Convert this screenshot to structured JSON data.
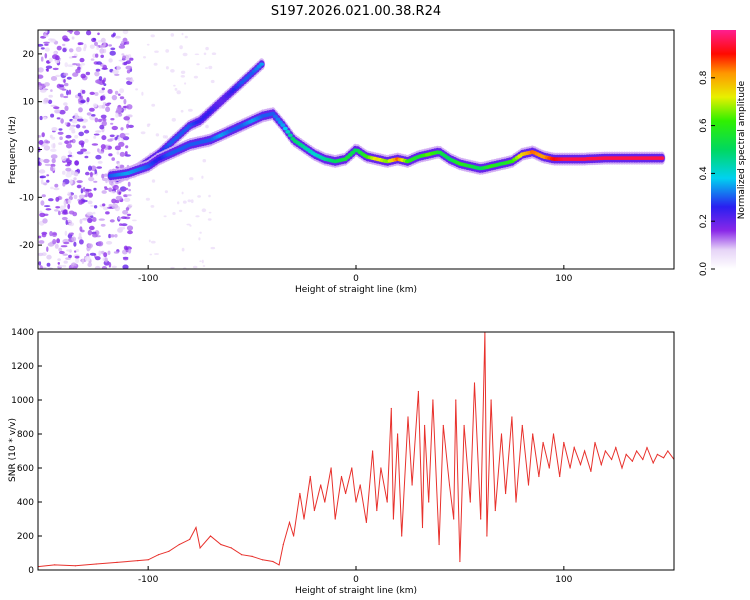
{
  "title": "S197.2026.021.00.38.R24",
  "chart_data": [
    {
      "type": "heatmap",
      "xlabel": "Height of straight line (km)",
      "ylabel": "Frequency (Hz)",
      "xlim": [
        -153,
        153
      ],
      "ylim": [
        -25,
        25
      ],
      "xticks": [
        -100,
        0,
        100
      ],
      "xtick_labels": [
        "-100",
        "0",
        "100"
      ],
      "yticks": [
        -20,
        -10,
        0,
        10,
        20
      ],
      "ytick_labels": [
        "-20",
        "-10",
        "0",
        "10",
        "20"
      ],
      "ridge": {
        "x": [
          -118,
          -110,
          -100,
          -95,
          -90,
          -85,
          -80,
          -75,
          -70,
          -65,
          -60,
          -55,
          -50,
          -45,
          -40,
          -35,
          -30,
          -25,
          -20,
          -15,
          -10,
          -5,
          0,
          5,
          10,
          15,
          20,
          25,
          30,
          35,
          40,
          45,
          50,
          55,
          60,
          65,
          70,
          75,
          80,
          85,
          90,
          95,
          100,
          110,
          120,
          130,
          140,
          148
        ],
        "freq": [
          -5.5,
          -5,
          -3.5,
          -2,
          -1,
          0,
          1,
          1.5,
          2,
          3,
          4,
          5,
          6,
          7,
          7.5,
          5,
          2,
          0.5,
          -1,
          -2,
          -2.5,
          -2,
          0,
          -1.5,
          -2,
          -2.5,
          -2,
          -2.5,
          -1.5,
          -1,
          -0.5,
          -2,
          -3,
          -3.5,
          -4,
          -3.5,
          -3,
          -2.5,
          -1,
          -0.5,
          -1.5,
          -2,
          -2,
          -2,
          -1.8,
          -1.8,
          -1.8,
          -1.8
        ],
        "amplitude": [
          0.3,
          0.35,
          0.3,
          0.25,
          0.3,
          0.3,
          0.3,
          0.3,
          0.3,
          0.35,
          0.3,
          0.3,
          0.35,
          0.3,
          0.3,
          0.35,
          0.5,
          0.45,
          0.4,
          0.45,
          0.5,
          0.55,
          0.5,
          0.6,
          0.75,
          0.65,
          0.85,
          0.6,
          0.55,
          0.65,
          0.55,
          0.5,
          0.6,
          0.55,
          0.5,
          0.6,
          0.55,
          0.6,
          0.75,
          0.85,
          0.8,
          0.9,
          0.95,
          0.95,
          0.95,
          0.95,
          0.95,
          0.95
        ]
      },
      "branch": {
        "x": [
          -115,
          -105,
          -95,
          -90,
          -85,
          -80,
          -75,
          -70,
          -65,
          -60,
          -55,
          -50,
          -45
        ],
        "freq": [
          -6,
          -4,
          -1,
          1,
          3,
          5,
          6,
          8,
          10,
          12,
          14,
          16,
          18
        ],
        "amplitude": [
          0.2,
          0.2,
          0.25,
          0.3,
          0.3,
          0.3,
          0.25,
          0.25,
          0.2,
          0.25,
          0.3,
          0.3,
          0.35
        ]
      },
      "colorbar": {
        "label": "Normalized spectral amplitude",
        "range": [
          0,
          1
        ],
        "ticks": [
          0.0,
          0.2,
          0.4,
          0.6,
          0.8
        ],
        "tick_labels": [
          "0.0",
          "0.2",
          "0.4",
          "0.6",
          "0.8"
        ]
      }
    },
    {
      "type": "line",
      "xlabel": "Height of straight line (km)",
      "ylabel": "SNR (10 * v/v)",
      "xlim": [
        -153,
        153
      ],
      "ylim": [
        0,
        1400
      ],
      "xticks": [
        -100,
        0,
        100
      ],
      "xtick_labels": [
        "-100",
        "0",
        "100"
      ],
      "yticks": [
        0,
        200,
        400,
        600,
        800,
        1000,
        1200,
        1400
      ],
      "ytick_labels": [
        "0",
        "200",
        "400",
        "600",
        "800",
        "1000",
        "1200",
        "1400"
      ],
      "color": "#e8312c",
      "series": [
        {
          "name": "SNR",
          "x": [
            -153,
            -145,
            -135,
            -125,
            -115,
            -105,
            -100,
            -95,
            -90,
            -85,
            -80,
            -77,
            -75,
            -70,
            -65,
            -60,
            -55,
            -50,
            -45,
            -40,
            -37,
            -35,
            -32,
            -30,
            -27,
            -25,
            -22,
            -20,
            -17,
            -15,
            -12,
            -10,
            -7,
            -5,
            -2,
            0,
            2,
            5,
            8,
            10,
            12,
            15,
            17,
            18,
            20,
            22,
            25,
            27,
            30,
            32,
            33,
            35,
            37,
            40,
            42,
            45,
            47,
            48,
            50,
            52,
            55,
            57,
            60,
            62,
            63,
            65,
            67,
            70,
            72,
            75,
            77,
            80,
            83,
            85,
            88,
            90,
            93,
            95,
            98,
            100,
            103,
            105,
            108,
            110,
            113,
            115,
            118,
            120,
            123,
            125,
            128,
            130,
            133,
            135,
            138,
            140,
            143,
            145,
            148,
            150,
            153
          ],
          "values": [
            20,
            30,
            25,
            35,
            45,
            55,
            60,
            90,
            110,
            150,
            180,
            250,
            130,
            200,
            150,
            130,
            90,
            80,
            60,
            50,
            30,
            150,
            280,
            200,
            450,
            300,
            550,
            350,
            500,
            400,
            600,
            300,
            550,
            450,
            600,
            400,
            500,
            280,
            700,
            350,
            600,
            400,
            950,
            300,
            800,
            200,
            900,
            500,
            1050,
            250,
            850,
            400,
            1000,
            150,
            850,
            500,
            300,
            1000,
            50,
            850,
            400,
            1100,
            300,
            1400,
            200,
            1000,
            350,
            800,
            450,
            900,
            400,
            850,
            500,
            800,
            550,
            750,
            600,
            800,
            550,
            750,
            600,
            720,
            620,
            700,
            580,
            750,
            620,
            700,
            650,
            720,
            600,
            680,
            640,
            700,
            650,
            720,
            630,
            680,
            660,
            700,
            650
          ]
        }
      ]
    }
  ]
}
